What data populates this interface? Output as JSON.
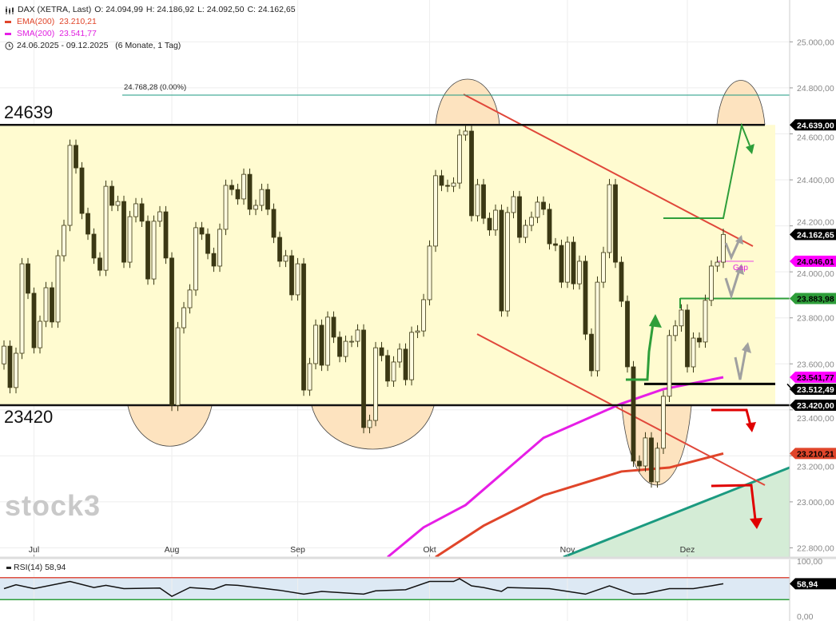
{
  "legend": {
    "instrument": "DAX (XETRA, Last)",
    "open": "O: 24.094,99",
    "high": "H: 24.186,92",
    "low": "L: 24.092,50",
    "close": "C: 24.162,65",
    "ema": "EMA(200)  23.210,21",
    "sma": "SMA(200)  23.541,77",
    "range": "24.06.2025 - 09.12.2025   (6 Monate, 1 Tag)"
  },
  "logo": "stock3",
  "annotations": {
    "resistance_label": "24639",
    "support_label": "23420",
    "high_line_label": "24.768,28 (0.00%)",
    "gap_label": "Gap"
  },
  "levels": {
    "resistance": 24639,
    "support": 23420,
    "high_line": 24768.28,
    "black_mid": 23512.49,
    "green_mid": 23883.98,
    "gap": 24046.01
  },
  "colors": {
    "candle_down": "#3b3814",
    "candle_up": "#fffbe0",
    "zone": "#fffbd0",
    "ema": "#e0452a",
    "sma": "#e61ee6",
    "trend_red": "#e0473a",
    "support_teal": "#1b9a80",
    "green": "#2e9e3a",
    "red_arrow": "#e00000",
    "gray_arrow": "#a0a0a0",
    "arc_fill": "#fde3bf"
  },
  "chart_data": {
    "type": "candlestick",
    "title": "DAX (XETRA, Last)",
    "start_date": "2025-06-24",
    "end_date": "2025-12-09",
    "ylim": [
      22800,
      25050
    ],
    "y_ticks": [
      "25.000,00",
      "24.800,00",
      "24.600,00",
      "24.400,00",
      "24.200,00",
      "24.000,00",
      "23.800,00",
      "23.600,00",
      "23.400,00",
      "23.200,00",
      "23.000,00",
      "22.800,00"
    ],
    "x_ticks": [
      {
        "label": "Jul",
        "date": "2025-07-01"
      },
      {
        "label": "Aug",
        "date": "2025-08-01"
      },
      {
        "label": "Sep",
        "date": "2025-09-01"
      },
      {
        "label": "Okt",
        "date": "2025-10-01"
      },
      {
        "label": "Nov",
        "date": "2025-11-03"
      },
      {
        "label": "Dez",
        "date": "2025-12-01"
      }
    ],
    "grid": true,
    "closes": [
      23677,
      23497,
      23646,
      24035,
      23907,
      23670,
      23785,
      23931,
      23782,
      24070,
      24202,
      24550,
      24452,
      24254,
      24164,
      24060,
      24007,
      24372,
      24289,
      24306,
      24042,
      24240,
      24296,
      24220,
      23969,
      24220,
      24261,
      24060,
      23420,
      23757,
      23844,
      23921,
      24192,
      24164,
      24080,
      24025,
      24185,
      24376,
      24358,
      24317,
      24424,
      24272,
      24289,
      24358,
      24272,
      24150,
      24046,
      24070,
      23900,
      24035,
      23486,
      23601,
      23768,
      23594,
      23803,
      23716,
      23632,
      23698,
      23698,
      23747,
      23323,
      23354,
      23670,
      23636,
      23525,
      23608,
      23664,
      23531,
      23737,
      23743,
      23879,
      24112,
      24418,
      24376,
      24372,
      24386,
      24595,
      24612,
      24244,
      24379,
      24233,
      24182,
      24268,
      23830,
      24258,
      24327,
      24150,
      24202,
      24237,
      24303,
      24272,
      24122,
      24115,
      23955,
      24129,
      23948,
      24046,
      23729,
      23570,
      23955,
      24084,
      24379,
      24042,
      23872,
      23587,
      23177,
      23156,
      23278,
      23087,
      23233,
      23459,
      23723,
      23765,
      23834,
      23587,
      23712,
      23695,
      23876,
      24025,
      24042,
      24162.65
    ],
    "ema200": [
      [
        "2025-10-02",
        22760
      ],
      [
        "2025-10-14",
        22896
      ],
      [
        "2025-10-28",
        23028
      ],
      [
        "2025-11-14",
        23132
      ],
      [
        "2025-11-26",
        23149
      ],
      [
        "2025-12-09",
        23210.21
      ]
    ],
    "sma200": [
      [
        "2025-09-22",
        22760
      ],
      [
        "2025-09-30",
        22889
      ],
      [
        "2025-10-09",
        22986
      ],
      [
        "2025-10-28",
        23278
      ],
      [
        "2025-11-14",
        23427
      ],
      [
        "2025-11-25",
        23490
      ],
      [
        "2025-12-09",
        23541.77
      ]
    ],
    "price_tags": [
      {
        "label": "24.639,00",
        "value": 24639,
        "bg": "#000000",
        "fg": "#ffffff"
      },
      {
        "label": "24.162,65",
        "value": 24162.65,
        "bg": "#000000",
        "fg": "#ffffff"
      },
      {
        "label": "24.046,01",
        "value": 24046.01,
        "bg": "#ff00ff",
        "fg": "#000000"
      },
      {
        "label": "23.883,98",
        "value": 23883.98,
        "bg": "#2e9e3a",
        "fg": "#000000"
      },
      {
        "label": "23.541,77",
        "value": 23541.77,
        "bg": "#ff00ff",
        "fg": "#000000"
      },
      {
        "label": "23.512,49",
        "value": 23512.49,
        "bg": "#000000",
        "fg": "#ffffff"
      },
      {
        "label": "23.420,00",
        "value": 23420,
        "bg": "#000000",
        "fg": "#ffffff"
      },
      {
        "label": "23.210,21",
        "value": 23210.21,
        "bg": "#e0452a",
        "fg": "#000000"
      }
    ],
    "rsi": {
      "label": "RSI(14) 58,94",
      "value_tag": "58,94",
      "ylim": [
        0,
        100
      ],
      "y_ticks": [
        "100,00",
        "0,00"
      ],
      "upper": 70,
      "lower": 30,
      "points": [
        [
          "2025-06-24",
          50
        ],
        [
          "2025-06-26",
          57
        ],
        [
          "2025-07-01",
          50
        ],
        [
          "2025-07-09",
          63
        ],
        [
          "2025-07-15",
          52
        ],
        [
          "2025-07-17",
          56
        ],
        [
          "2025-07-22",
          50
        ],
        [
          "2025-07-30",
          51
        ],
        [
          "2025-08-01",
          36
        ],
        [
          "2025-08-06",
          52
        ],
        [
          "2025-08-12",
          49
        ],
        [
          "2025-08-14",
          57
        ],
        [
          "2025-08-18",
          56
        ],
        [
          "2025-08-27",
          47
        ],
        [
          "2025-09-02",
          40
        ],
        [
          "2025-09-05",
          45
        ],
        [
          "2025-09-16",
          40
        ],
        [
          "2025-09-18",
          46
        ],
        [
          "2025-09-25",
          48
        ],
        [
          "2025-10-01",
          63
        ],
        [
          "2025-10-07",
          63
        ],
        [
          "2025-10-08",
          68
        ],
        [
          "2025-10-10",
          55
        ],
        [
          "2025-10-14",
          52
        ],
        [
          "2025-10-17",
          45
        ],
        [
          "2025-10-20",
          52
        ],
        [
          "2025-10-29",
          50
        ],
        [
          "2025-11-06",
          40
        ],
        [
          "2025-11-12",
          55
        ],
        [
          "2025-11-18",
          40
        ],
        [
          "2025-11-20",
          41
        ],
        [
          "2025-11-26",
          50
        ],
        [
          "2025-12-02",
          50
        ],
        [
          "2025-12-05",
          55
        ],
        [
          "2025-12-09",
          58.94
        ]
      ]
    }
  }
}
